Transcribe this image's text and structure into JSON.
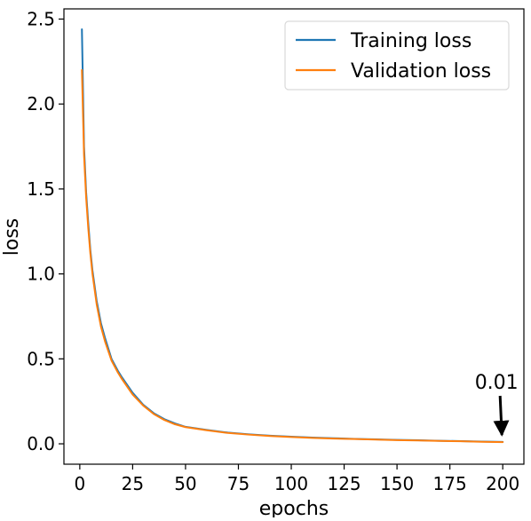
{
  "chart_data": {
    "type": "line",
    "title": "",
    "xlabel": "epochs",
    "ylabel": "loss",
    "xlim": [
      -7.5,
      210
    ],
    "ylim": [
      -0.12,
      2.56
    ],
    "grid": false,
    "legend_position": "top-right",
    "x_ticks": [
      0,
      25,
      50,
      75,
      100,
      125,
      150,
      175,
      200
    ],
    "x_tick_labels": [
      "0",
      "25",
      "50",
      "75",
      "100",
      "125",
      "150",
      "175",
      "200"
    ],
    "y_ticks": [
      0.0,
      0.5,
      1.0,
      1.5,
      2.0,
      2.5
    ],
    "y_tick_labels": [
      "0.0",
      "0.5",
      "1.0",
      "1.5",
      "2.0",
      "2.5"
    ],
    "x": [
      1,
      2,
      3,
      4,
      5,
      6,
      8,
      10,
      12,
      15,
      18,
      20,
      25,
      30,
      35,
      40,
      45,
      50,
      60,
      70,
      80,
      90,
      100,
      110,
      120,
      130,
      140,
      150,
      160,
      170,
      180,
      190,
      200
    ],
    "series": [
      {
        "name": "Training loss",
        "color": "#1f77b4",
        "values": [
          2.44,
          1.75,
          1.48,
          1.3,
          1.14,
          1.02,
          0.84,
          0.71,
          0.62,
          0.5,
          0.43,
          0.39,
          0.3,
          0.23,
          0.18,
          0.145,
          0.12,
          0.1,
          0.082,
          0.066,
          0.056,
          0.048,
          0.042,
          0.037,
          0.033,
          0.029,
          0.026,
          0.023,
          0.021,
          0.018,
          0.016,
          0.013,
          0.011
        ]
      },
      {
        "name": "Validation loss",
        "color": "#ff7f0e",
        "values": [
          2.2,
          1.7,
          1.45,
          1.27,
          1.12,
          1.0,
          0.82,
          0.69,
          0.6,
          0.49,
          0.42,
          0.38,
          0.29,
          0.225,
          0.175,
          0.14,
          0.115,
          0.098,
          0.08,
          0.064,
          0.054,
          0.046,
          0.04,
          0.035,
          0.031,
          0.028,
          0.025,
          0.022,
          0.02,
          0.017,
          0.015,
          0.012,
          0.01
        ]
      }
    ],
    "annotations": [
      {
        "text": "0.01",
        "x": 200,
        "y": 0.01,
        "arrow": true,
        "arrow_color": "#000000"
      }
    ]
  }
}
